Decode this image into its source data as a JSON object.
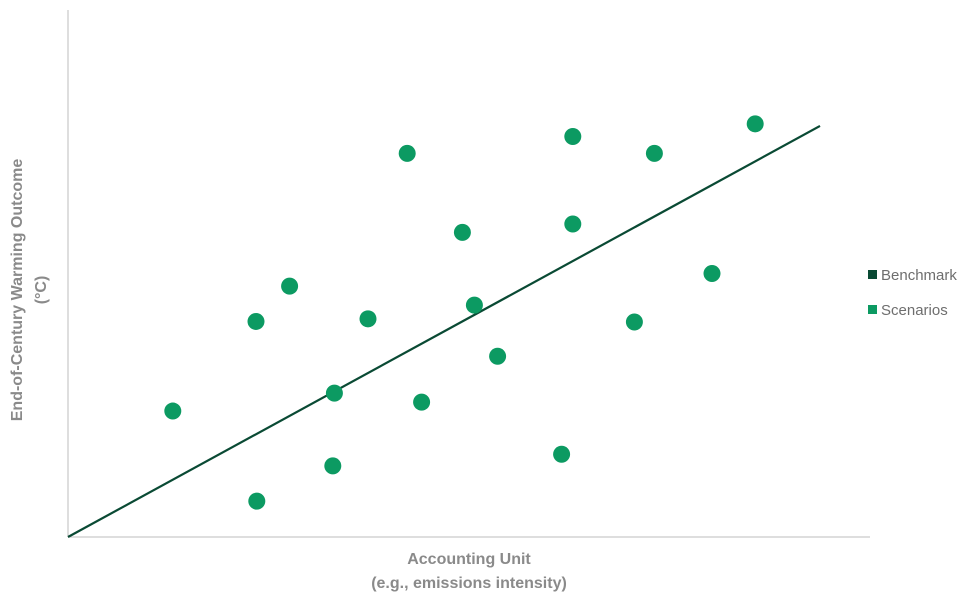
{
  "chart_data": {
    "type": "scatter",
    "title": "",
    "xlabel_lines": [
      "Accounting Unit",
      "(e.g., emissions intensity)"
    ],
    "ylabel_lines": [
      "End-of-Century Warming Outcome",
      "(°C)"
    ],
    "xlim": [
      0,
      100
    ],
    "ylim": [
      0,
      100
    ],
    "grid": false,
    "legend_position": "right",
    "series": [
      {
        "name": "Benchmark",
        "kind": "line",
        "color": "#0a4a34",
        "points": [
          [
            0,
            0
          ],
          [
            94,
            78
          ]
        ]
      },
      {
        "name": "Scenarios",
        "kind": "scatter",
        "color": "#0c9a62",
        "points": [
          [
            13.1,
            23.9
          ],
          [
            23.5,
            40.9
          ],
          [
            27.7,
            47.6
          ],
          [
            23.6,
            6.8
          ],
          [
            33.3,
            27.3
          ],
          [
            37.5,
            41.4
          ],
          [
            33.1,
            13.5
          ],
          [
            44.2,
            25.6
          ],
          [
            42.4,
            72.8
          ],
          [
            49.3,
            57.8
          ],
          [
            50.8,
            44.0
          ],
          [
            53.7,
            34.3
          ],
          [
            61.7,
            15.7
          ],
          [
            63.1,
            59.4
          ],
          [
            63.1,
            76.0
          ],
          [
            70.8,
            40.8
          ],
          [
            73.3,
            72.8
          ],
          [
            80.5,
            50.0
          ],
          [
            85.9,
            78.4
          ]
        ]
      }
    ]
  }
}
